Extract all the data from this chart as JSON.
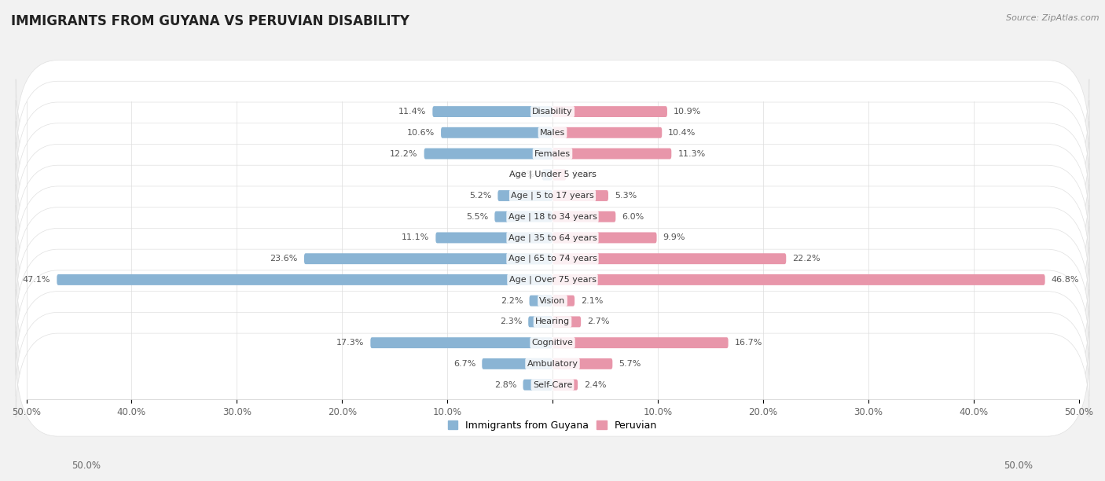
{
  "title": "IMMIGRANTS FROM GUYANA VS PERUVIAN DISABILITY",
  "source": "Source: ZipAtlas.com",
  "categories": [
    "Disability",
    "Males",
    "Females",
    "Age | Under 5 years",
    "Age | 5 to 17 years",
    "Age | 18 to 34 years",
    "Age | 35 to 64 years",
    "Age | 65 to 74 years",
    "Age | Over 75 years",
    "Vision",
    "Hearing",
    "Cognitive",
    "Ambulatory",
    "Self-Care"
  ],
  "left_values": [
    11.4,
    10.6,
    12.2,
    1.0,
    5.2,
    5.5,
    11.1,
    23.6,
    47.1,
    2.2,
    2.3,
    17.3,
    6.7,
    2.8
  ],
  "right_values": [
    10.9,
    10.4,
    11.3,
    1.3,
    5.3,
    6.0,
    9.9,
    22.2,
    46.8,
    2.1,
    2.7,
    16.7,
    5.7,
    2.4
  ],
  "left_color": "#8ab4d4",
  "right_color": "#e896aa",
  "left_label": "Immigrants from Guyana",
  "right_label": "Peruvian",
  "axis_max": 50.0,
  "background_color": "#f2f2f2",
  "row_bg_color": "#ffffff",
  "row_sep_color": "#e0e0e0",
  "title_fontsize": 12,
  "tick_fontsize": 8.5,
  "legend_fontsize": 9,
  "value_fontsize": 8,
  "category_fontsize": 8
}
